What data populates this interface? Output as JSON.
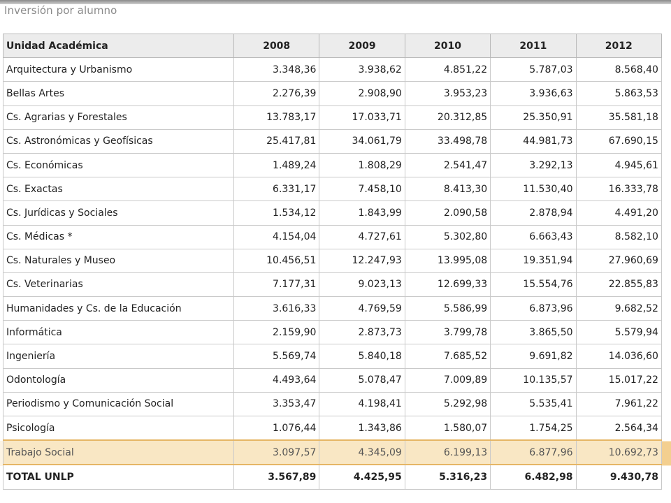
{
  "title": "Inversión por alumno",
  "table": {
    "headers": [
      "Unidad Académica",
      "2008",
      "2009",
      "2010",
      "2011",
      "2012"
    ],
    "rows": [
      [
        "Arquitectura y Urbanismo",
        "3.348,36",
        "3.938,62",
        "4.851,22",
        "5.787,03",
        "8.568,40"
      ],
      [
        "Bellas Artes",
        "2.276,39",
        "2.908,90",
        "3.953,23",
        "3.936,63",
        "5.863,53"
      ],
      [
        "Cs. Agrarias y Forestales",
        "13.783,17",
        "17.033,71",
        "20.312,85",
        "25.350,91",
        "35.581,18"
      ],
      [
        "Cs. Astronómicas y Geofísicas",
        "25.417,81",
        "34.061,79",
        "33.498,78",
        "44.981,73",
        "67.690,15"
      ],
      [
        "Cs. Económicas",
        "1.489,24",
        "1.808,29",
        "2.541,47",
        "3.292,13",
        "4.945,61"
      ],
      [
        "Cs. Exactas",
        "6.331,17",
        "7.458,10",
        "8.413,30",
        "11.530,40",
        "16.333,78"
      ],
      [
        "Cs. Jurídicas y Sociales",
        "1.534,12",
        "1.843,99",
        "2.090,58",
        "2.878,94",
        "4.491,20"
      ],
      [
        "Cs. Médicas *",
        "4.154,04",
        "4.727,61",
        "5.302,80",
        "6.663,43",
        "8.582,10"
      ],
      [
        "Cs. Naturales y Museo",
        "10.456,51",
        "12.247,93",
        "13.995,08",
        "19.351,94",
        "27.960,69"
      ],
      [
        "Cs. Veterinarias",
        "7.177,31",
        "9.023,13",
        "12.699,33",
        "15.554,76",
        "22.855,83"
      ],
      [
        "Humanidades y Cs. de la Educación",
        "3.616,33",
        "4.769,59",
        "5.586,99",
        "6.873,96",
        "9.682,52"
      ],
      [
        "Informática",
        "2.159,90",
        "2.873,73",
        "3.799,78",
        "3.865,50",
        "5.579,94"
      ],
      [
        "Ingeniería",
        "5.569,74",
        "5.840,18",
        "7.685,52",
        "9.691,82",
        "14.036,60"
      ],
      [
        "Odontología",
        "4.493,64",
        "5.078,47",
        "7.009,89",
        "10.135,57",
        "15.017,22"
      ],
      [
        "Periodismo y Comunicación Social",
        "3.353,47",
        "4.198,41",
        "5.292,98",
        "5.535,41",
        "7.961,22"
      ],
      [
        "Psicología",
        "1.076,44",
        "1.343,86",
        "1.580,07",
        "1.754,25",
        "2.564,34"
      ],
      [
        "Trabajo Social",
        "3.097,57",
        "4.345,09",
        "6.199,13",
        "6.877,96",
        "10.692,73"
      ]
    ],
    "highlighted_row": "Trabajo Social",
    "total": [
      "TOTAL UNLP",
      "3.567,89",
      "4.425,95",
      "5.316,23",
      "6.482,98",
      "9.430,78"
    ]
  },
  "colors": {
    "header_bg": "#ececec",
    "highlight_bg": "#f9e7c4",
    "highlight_border": "#e6b665",
    "title_color": "#8a8a8a"
  }
}
